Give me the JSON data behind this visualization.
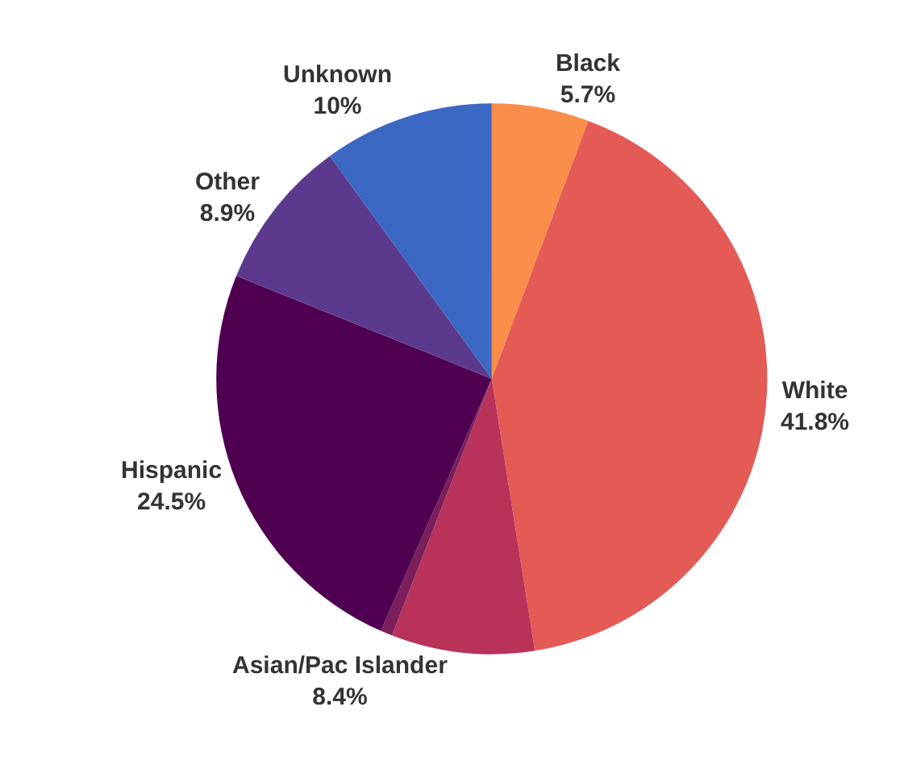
{
  "chart_data": {
    "type": "pie",
    "categories": [
      "Black",
      "White",
      "Asian/Pac Islander",
      null,
      "Hispanic",
      "Other",
      "Unknown"
    ],
    "values": [
      5.7,
      41.8,
      8.4,
      0.7,
      24.5,
      8.9,
      10
    ],
    "value_labels": [
      "5.7%",
      "41.8%",
      "8.4%",
      null,
      "24.5%",
      "8.9%",
      "10%"
    ],
    "colors": [
      "#f98e4a",
      "#e45a55",
      "#b8325a",
      "#7a1f5a",
      "#4f0050",
      "#5b3a8e",
      "#3a68c3"
    ],
    "legend": false
  }
}
